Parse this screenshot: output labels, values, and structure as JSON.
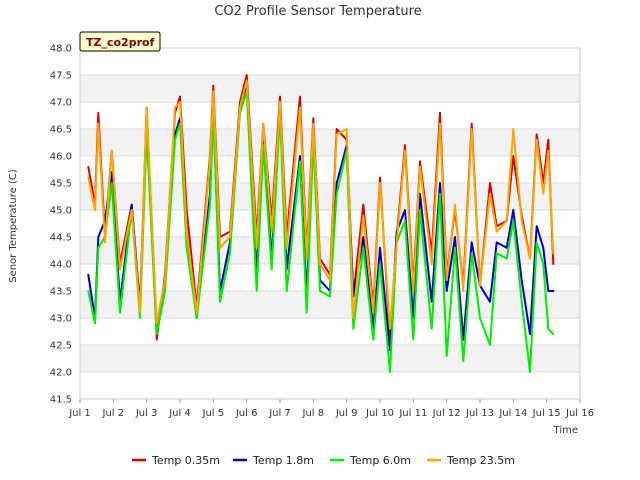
{
  "chart_data": {
    "type": "line",
    "title": "CO2 Profile Sensor Temperature",
    "xlabel": "Time",
    "ylabel": "Senor Temperature (C)",
    "site_label": "TZ_co2prof",
    "ylim": [
      41.5,
      48.0
    ],
    "yticks": [
      41.5,
      42.0,
      42.5,
      43.0,
      43.5,
      44.0,
      44.5,
      45.0,
      45.5,
      46.0,
      46.5,
      47.0,
      47.5,
      48.0
    ],
    "xlim": [
      1,
      16
    ],
    "xticks": [
      {
        "value": 1,
        "label": "Jul 1"
      },
      {
        "value": 2,
        "label": "Jul 2"
      },
      {
        "value": 3,
        "label": "Jul 3"
      },
      {
        "value": 4,
        "label": "Jul 4"
      },
      {
        "value": 5,
        "label": "Jul 5"
      },
      {
        "value": 6,
        "label": "Jul 6"
      },
      {
        "value": 7,
        "label": "Jul 7"
      },
      {
        "value": 8,
        "label": "Jul 8"
      },
      {
        "value": 9,
        "label": "Jul 9"
      },
      {
        "value": 10,
        "label": "Jul 10"
      },
      {
        "value": 11,
        "label": "Jul 11"
      },
      {
        "value": 12,
        "label": "Jul 12"
      },
      {
        "value": 13,
        "label": "Jul 13"
      },
      {
        "value": 14,
        "label": "Jul 14"
      },
      {
        "value": 15,
        "label": "Jul 15"
      },
      {
        "value": 16,
        "label": "Jul 16"
      }
    ],
    "grid": true,
    "legend_position": "bottom",
    "series": [
      {
        "name": "Temp 0.35m",
        "color": "#dd0000",
        "x": [
          1.25,
          1.45,
          1.55,
          1.75,
          1.95,
          2.2,
          2.55,
          2.8,
          3.0,
          3.3,
          3.55,
          3.85,
          4.0,
          4.2,
          4.5,
          4.9,
          5.0,
          5.2,
          5.5,
          5.8,
          6.0,
          6.3,
          6.5,
          6.75,
          7.0,
          7.2,
          7.6,
          7.8,
          8.0,
          8.2,
          8.5,
          8.7,
          9.0,
          9.2,
          9.5,
          9.8,
          10.0,
          10.3,
          10.5,
          10.75,
          11.0,
          11.2,
          11.55,
          11.8,
          12.0,
          12.25,
          12.5,
          12.75,
          13.0,
          13.3,
          13.5,
          13.8,
          14.0,
          14.25,
          14.5,
          14.7,
          14.9,
          15.05,
          15.2
        ],
        "y": [
          45.8,
          45.1,
          46.8,
          44.5,
          46.1,
          44.0,
          45.1,
          43.2,
          46.9,
          42.6,
          43.8,
          46.8,
          47.1,
          45.0,
          43.2,
          46.0,
          47.3,
          44.5,
          44.6,
          47.0,
          47.5,
          44.5,
          46.6,
          44.8,
          47.1,
          44.5,
          47.1,
          44.2,
          46.7,
          44.1,
          43.8,
          46.5,
          46.3,
          43.4,
          45.1,
          43.2,
          45.6,
          42.6,
          44.5,
          46.2,
          43.6,
          45.9,
          44.2,
          46.8,
          43.8,
          45.0,
          43.6,
          46.6,
          43.6,
          45.5,
          44.7,
          44.8,
          46.0,
          44.9,
          44.1,
          46.4,
          45.5,
          46.3,
          44.0
        ]
      },
      {
        "name": "Temp 1.8m",
        "color": "#0000cc",
        "x": [
          1.25,
          1.45,
          1.55,
          1.75,
          1.95,
          2.2,
          2.55,
          2.8,
          3.0,
          3.3,
          3.55,
          3.85,
          4.0,
          4.2,
          4.5,
          4.9,
          5.0,
          5.2,
          5.5,
          5.8,
          6.0,
          6.3,
          6.5,
          6.75,
          7.0,
          7.2,
          7.6,
          7.8,
          8.0,
          8.2,
          8.5,
          8.7,
          9.0,
          9.2,
          9.5,
          9.8,
          10.0,
          10.3,
          10.5,
          10.75,
          11.0,
          11.2,
          11.55,
          11.8,
          12.0,
          12.25,
          12.5,
          12.75,
          13.0,
          13.3,
          13.5,
          13.8,
          14.0,
          14.25,
          14.5,
          14.7,
          14.9,
          15.05,
          15.2
        ],
        "y": [
          43.8,
          43.0,
          44.5,
          44.8,
          45.7,
          43.3,
          45.1,
          43.2,
          46.6,
          42.8,
          43.6,
          46.4,
          46.7,
          44.5,
          43.0,
          45.3,
          46.9,
          43.5,
          44.4,
          46.9,
          47.3,
          43.8,
          46.3,
          44.1,
          46.9,
          43.9,
          46.0,
          43.4,
          46.5,
          43.7,
          43.5,
          45.5,
          46.2,
          43.4,
          44.5,
          42.8,
          44.3,
          42.4,
          44.6,
          45.0,
          43.0,
          45.3,
          43.3,
          45.5,
          43.5,
          44.5,
          42.6,
          44.4,
          43.6,
          43.3,
          44.4,
          44.3,
          45.0,
          43.7,
          42.7,
          44.7,
          44.3,
          43.5,
          43.5
        ]
      },
      {
        "name": "Temp 6.0m",
        "color": "#00ee00",
        "x": [
          1.25,
          1.45,
          1.55,
          1.75,
          1.95,
          2.2,
          2.55,
          2.8,
          3.0,
          3.3,
          3.55,
          3.85,
          4.0,
          4.2,
          4.5,
          4.9,
          5.0,
          5.2,
          5.5,
          5.8,
          6.0,
          6.3,
          6.5,
          6.75,
          7.0,
          7.2,
          7.6,
          7.8,
          8.0,
          8.2,
          8.5,
          8.7,
          9.0,
          9.2,
          9.5,
          9.8,
          10.0,
          10.3,
          10.5,
          10.75,
          11.0,
          11.2,
          11.55,
          11.8,
          12.0,
          12.25,
          12.5,
          12.75,
          13.0,
          13.3,
          13.5,
          13.8,
          14.0,
          14.25,
          14.5,
          14.7,
          14.9,
          15.05,
          15.2
        ],
        "y": [
          43.5,
          42.9,
          44.3,
          44.5,
          45.5,
          43.1,
          45.0,
          43.0,
          46.4,
          42.7,
          43.5,
          46.3,
          46.6,
          44.3,
          43.0,
          45.1,
          46.8,
          43.3,
          44.2,
          46.8,
          47.2,
          43.5,
          46.2,
          43.9,
          46.8,
          43.5,
          45.9,
          43.1,
          46.3,
          43.5,
          43.4,
          45.3,
          46.1,
          42.8,
          44.3,
          42.6,
          44.0,
          42.0,
          44.4,
          44.8,
          42.6,
          45.0,
          42.8,
          45.3,
          42.3,
          44.3,
          42.2,
          44.2,
          43.0,
          42.5,
          44.2,
          44.1,
          44.8,
          43.3,
          42.0,
          44.4,
          44.0,
          42.8,
          42.7
        ]
      },
      {
        "name": "Temp 23.5m",
        "color": "#ffa500",
        "x": [
          1.25,
          1.45,
          1.55,
          1.75,
          1.95,
          2.2,
          2.55,
          2.8,
          3.0,
          3.3,
          3.55,
          3.85,
          4.0,
          4.2,
          4.5,
          4.9,
          5.0,
          5.2,
          5.5,
          5.8,
          6.0,
          6.3,
          6.5,
          6.75,
          7.0,
          7.2,
          7.6,
          7.8,
          8.0,
          8.2,
          8.5,
          8.7,
          9.0,
          9.2,
          9.5,
          9.8,
          10.0,
          10.3,
          10.5,
          10.75,
          11.0,
          11.2,
          11.55,
          11.8,
          12.0,
          12.25,
          12.5,
          12.75,
          13.0,
          13.3,
          13.5,
          13.8,
          14.0,
          14.25,
          14.5,
          14.7,
          14.9,
          15.05,
          15.2
        ],
        "y": [
          45.6,
          45.0,
          46.6,
          44.4,
          46.1,
          43.9,
          45.0,
          43.1,
          46.9,
          42.9,
          43.7,
          46.9,
          47.0,
          44.6,
          43.1,
          45.9,
          47.2,
          44.3,
          44.5,
          46.9,
          47.4,
          44.3,
          46.6,
          44.6,
          47.0,
          44.3,
          46.9,
          44.1,
          46.6,
          44.0,
          43.7,
          46.4,
          46.5,
          43.0,
          44.9,
          43.1,
          45.5,
          42.8,
          44.4,
          46.1,
          43.5,
          45.8,
          44.0,
          46.6,
          43.7,
          45.1,
          43.5,
          46.5,
          43.6,
          45.3,
          44.6,
          44.8,
          46.5,
          44.8,
          44.1,
          46.3,
          45.3,
          46.1,
          44.2
        ]
      }
    ]
  }
}
